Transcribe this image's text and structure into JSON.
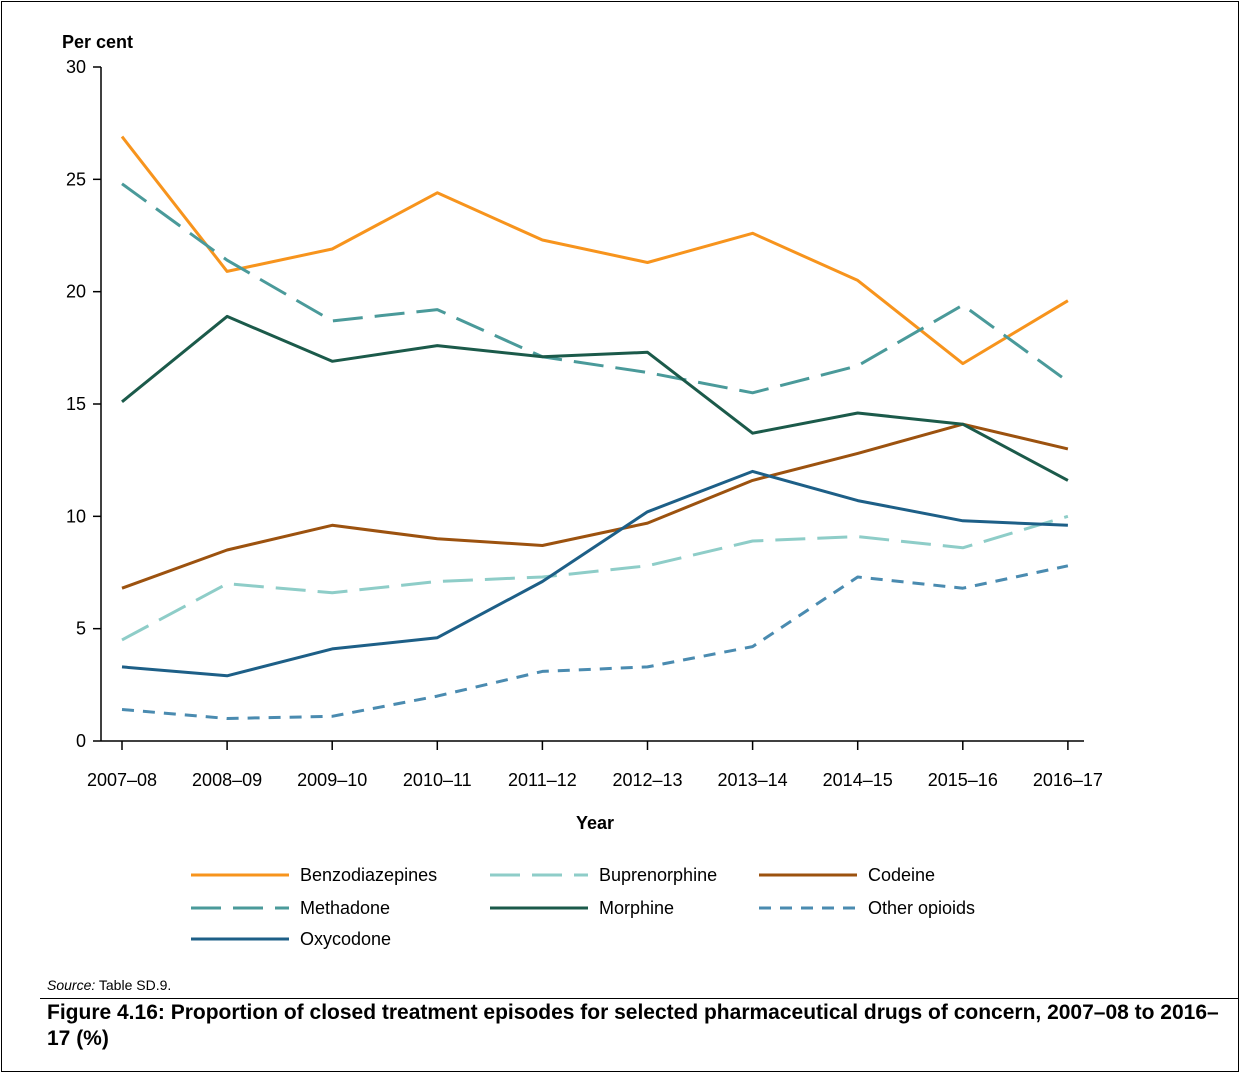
{
  "chart_data": {
    "type": "line",
    "ylabel": "Per cent",
    "xlabel": "Year",
    "ylim": [
      0,
      30
    ],
    "yticks": [
      0,
      5,
      10,
      15,
      20,
      25,
      30
    ],
    "categories": [
      "2007–08",
      "2008–09",
      "2009–10",
      "2010–11",
      "2011–12",
      "2012–13",
      "2013–14",
      "2014–15",
      "2015–16",
      "2016–17"
    ],
    "legend_position": "bottom",
    "grid": false,
    "series": [
      {
        "name": "Benzodiazepines",
        "color": "#F7941D",
        "dash": "solid",
        "values": [
          26.9,
          20.9,
          21.9,
          24.4,
          22.3,
          21.3,
          22.6,
          20.5,
          16.8,
          19.6
        ]
      },
      {
        "name": "Buprenorphine",
        "color": "#8ECDC8",
        "dash": "long-dash",
        "values": [
          4.5,
          7.0,
          6.6,
          7.1,
          7.3,
          7.8,
          8.9,
          9.1,
          8.6,
          10.0
        ]
      },
      {
        "name": "Codeine",
        "color": "#9C520F",
        "dash": "solid",
        "values": [
          6.8,
          8.5,
          9.6,
          9.0,
          8.7,
          9.7,
          11.6,
          12.8,
          14.1,
          13.0
        ]
      },
      {
        "name": "Methadone",
        "color": "#4A9A9A",
        "dash": "long-dash",
        "values": [
          24.8,
          21.4,
          18.7,
          19.2,
          17.1,
          16.4,
          15.5,
          16.7,
          19.4,
          16.0
        ]
      },
      {
        "name": "Morphine",
        "color": "#1B5A4A",
        "dash": "solid",
        "values": [
          15.1,
          18.9,
          16.9,
          17.6,
          17.1,
          17.3,
          13.7,
          14.6,
          14.1,
          11.6
        ]
      },
      {
        "name": "Other opioids",
        "color": "#4A8BB0",
        "dash": "short-dash",
        "values": [
          1.4,
          1.0,
          1.1,
          2.0,
          3.1,
          3.3,
          4.2,
          7.3,
          6.8,
          7.8
        ]
      },
      {
        "name": "Oxycodone",
        "color": "#1D5F87",
        "dash": "solid",
        "values": [
          3.3,
          2.9,
          4.1,
          4.6,
          7.1,
          10.2,
          12.0,
          10.7,
          9.8,
          9.6
        ]
      }
    ]
  },
  "source_label": "Source:",
  "source_text": "Table SD.9.",
  "caption": "Figure 4.16: Proportion of closed treatment episodes for selected pharmaceutical drugs of concern, 2007–08 to 2016–17 (%)"
}
